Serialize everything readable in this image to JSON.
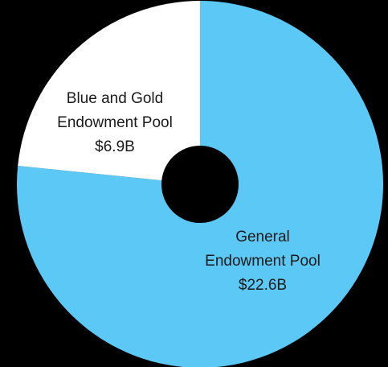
{
  "chart_data": {
    "type": "pie",
    "donut": true,
    "title": "",
    "slices": [
      {
        "label_lines": [
          "General",
          "Endowment Pool",
          "$22.6B"
        ],
        "name": "General Endowment Pool",
        "value": 22.6,
        "display_value": "$22.6B",
        "color": "#5bc8f5"
      },
      {
        "label_lines": [
          "Blue and Gold",
          "Endowment Pool",
          "$6.9B"
        ],
        "name": "Blue and Gold Endowment Pool",
        "value": 6.9,
        "display_value": "$6.9B",
        "color": "#ffffff"
      }
    ],
    "start_angle": "12 o'clock",
    "direction": "clockwise",
    "background": "#000000",
    "hole_color": "#000000",
    "label_color": "#1a1a1a"
  }
}
